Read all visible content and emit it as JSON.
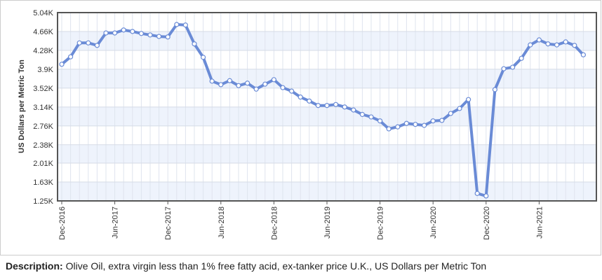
{
  "chart_data": {
    "type": "line",
    "y_label": "US Dollars per Metric Ton",
    "categories": [
      "Dec-2016",
      null,
      null,
      null,
      null,
      null,
      "Jun-2017",
      null,
      null,
      null,
      null,
      null,
      "Dec-2017",
      null,
      null,
      null,
      null,
      null,
      "Jun-2018",
      null,
      null,
      null,
      null,
      null,
      "Dec-2018",
      null,
      null,
      null,
      null,
      null,
      "Jun-2019",
      null,
      null,
      null,
      null,
      null,
      "Dec-2019",
      null,
      null,
      null,
      null,
      null,
      "Jun-2020",
      null,
      null,
      null,
      null,
      null,
      "Dec-2020",
      null,
      null,
      null,
      null,
      null,
      "Jun-2021",
      null,
      null,
      null,
      null,
      null
    ],
    "series": [
      {
        "color": "#6a8bd6",
        "values": [
          4000,
          4150,
          4430,
          4430,
          4380,
          4630,
          4630,
          4690,
          4660,
          4620,
          4590,
          4560,
          4550,
          4800,
          4790,
          4410,
          4140,
          3660,
          3590,
          3670,
          3570,
          3620,
          3500,
          3600,
          3690,
          3530,
          3460,
          3340,
          3260,
          3170,
          3170,
          3190,
          3140,
          3080,
          2990,
          2940,
          2860,
          2700,
          2740,
          2810,
          2790,
          2770,
          2860,
          2870,
          3010,
          3110,
          3290,
          1400,
          1350,
          3490,
          3910,
          3940,
          4120,
          4390,
          4490,
          4410,
          4390,
          4450,
          4380,
          4190
        ]
      }
    ],
    "ylim": [
      1250,
      5040
    ],
    "yticks": [
      {
        "value": 1250,
        "label": "1.25K"
      },
      {
        "value": 1630,
        "label": "1.63K"
      },
      {
        "value": 2010,
        "label": "2.01K"
      },
      {
        "value": 2380,
        "label": "2.38K"
      },
      {
        "value": 2760,
        "label": "2.76K"
      },
      {
        "value": 3140,
        "label": "3.14K"
      },
      {
        "value": 3520,
        "label": "3.52K"
      },
      {
        "value": 3900,
        "label": "3.9K"
      },
      {
        "value": 4280,
        "label": "4.28K"
      },
      {
        "value": 4660,
        "label": "4.66K"
      },
      {
        "value": 5040,
        "label": "5.04K"
      }
    ],
    "grid": true
  },
  "description": {
    "label": "Description:",
    "text": "Olive Oil, extra virgin less than 1% free fatty acid, ex-tanker price U.K., US Dollars per Metric Ton"
  }
}
